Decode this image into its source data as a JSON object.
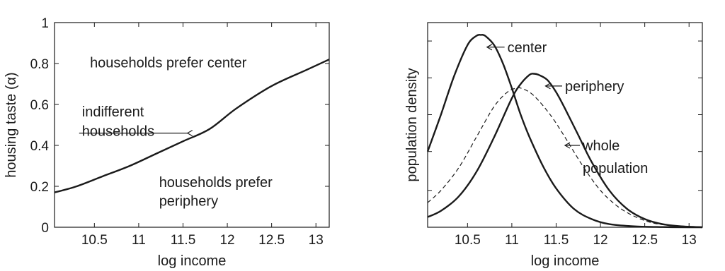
{
  "chart_data": [
    {
      "type": "line",
      "title": "",
      "xlabel": "log income",
      "ylabel": "housing taste (α)",
      "xlim": [
        10.05,
        13.15
      ],
      "ylim": [
        0,
        1
      ],
      "x_ticks": [
        10.5,
        11,
        11.5,
        12,
        12.5,
        13
      ],
      "y_ticks": [
        0,
        0.2,
        0.4,
        0.6,
        0.8,
        1
      ],
      "x_tick_labels": [
        "10.5",
        "11",
        "11.5",
        "12",
        "12.5",
        "13"
      ],
      "y_tick_labels": [
        "0",
        "0.2",
        "0.4",
        "0.6",
        "0.8",
        "1"
      ],
      "grid": false,
      "series": [
        {
          "style": "solid",
          "x": [
            10.05,
            10.3,
            10.6,
            10.9,
            11.2,
            11.5,
            11.8,
            12.1,
            12.5,
            12.9,
            13.15
          ],
          "y": [
            0.17,
            0.2,
            0.25,
            0.3,
            0.36,
            0.42,
            0.48,
            0.58,
            0.69,
            0.77,
            0.82
          ]
        }
      ],
      "annotations": [
        {
          "text": "households prefer center",
          "x": 10.45,
          "y": 0.805
        },
        {
          "text": "indifferent",
          "x": 10.36,
          "y": 0.565
        },
        {
          "text": "households",
          "x": 10.36,
          "y": 0.47,
          "arrow_to": [
            11.55,
            0.46
          ]
        },
        {
          "text": "households prefer",
          "x": 11.23,
          "y": 0.22
        },
        {
          "text": "periphery",
          "x": 11.23,
          "y": 0.13
        }
      ]
    },
    {
      "type": "line",
      "title": "",
      "xlabel": "log income",
      "ylabel": "population density",
      "xlim": [
        10.05,
        13.15
      ],
      "ylim": [
        0,
        1
      ],
      "x_ticks": [
        10.5,
        11,
        11.5,
        12,
        12.5,
        13
      ],
      "x_tick_labels": [
        "10.5",
        "11",
        "11.5",
        "12",
        "12.5",
        "13"
      ],
      "y_ticks": [
        0.18,
        0.37,
        0.55,
        0.73,
        0.91
      ],
      "y_tick_labels": [],
      "grid": false,
      "series": [
        {
          "style": "solid",
          "peak": 0.94,
          "x": [
            10.05,
            10.2,
            10.35,
            10.5,
            10.6,
            10.65,
            10.7,
            10.8,
            10.9,
            11.0,
            11.1,
            11.2,
            11.35,
            11.5,
            11.7,
            11.9,
            12.1,
            12.4,
            12.7,
            13.0,
            13.15
          ],
          "y": [
            0.37,
            0.55,
            0.74,
            0.89,
            0.935,
            0.94,
            0.935,
            0.89,
            0.8,
            0.68,
            0.55,
            0.44,
            0.3,
            0.19,
            0.09,
            0.04,
            0.015,
            0.004,
            0.001,
            0.0,
            0.0
          ]
        },
        {
          "style": "solid",
          "peak": 0.75,
          "x": [
            10.05,
            10.2,
            10.4,
            10.6,
            10.8,
            11.0,
            11.1,
            11.2,
            11.25,
            11.3,
            11.4,
            11.5,
            11.6,
            11.75,
            11.9,
            12.1,
            12.3,
            12.5,
            12.7,
            12.9,
            13.15
          ],
          "y": [
            0.05,
            0.08,
            0.15,
            0.27,
            0.44,
            0.63,
            0.7,
            0.745,
            0.75,
            0.745,
            0.72,
            0.66,
            0.58,
            0.45,
            0.32,
            0.18,
            0.09,
            0.04,
            0.015,
            0.005,
            0.0
          ]
        },
        {
          "style": "dashed",
          "peak": 0.68,
          "x": [
            10.05,
            10.2,
            10.4,
            10.6,
            10.8,
            10.95,
            11.05,
            11.1,
            11.2,
            11.3,
            11.45,
            11.6,
            11.8,
            12.0,
            12.2,
            12.4,
            12.6,
            12.8,
            13.0,
            13.15
          ],
          "y": [
            0.12,
            0.18,
            0.29,
            0.44,
            0.59,
            0.66,
            0.68,
            0.68,
            0.66,
            0.62,
            0.54,
            0.44,
            0.3,
            0.18,
            0.1,
            0.05,
            0.02,
            0.008,
            0.002,
            0.0
          ]
        }
      ],
      "annotations": [
        {
          "text": "center",
          "x": 10.95,
          "y": 0.88,
          "arrow_to": [
            10.72,
            0.88
          ]
        },
        {
          "text": "periphery",
          "x": 11.6,
          "y": 0.69,
          "arrow_to": [
            11.38,
            0.69
          ]
        },
        {
          "text": "whole",
          "x": 11.8,
          "y": 0.4,
          "arrow_to": [
            11.6,
            0.4
          ]
        },
        {
          "text": "population",
          "x": 11.8,
          "y": 0.29
        }
      ]
    }
  ]
}
